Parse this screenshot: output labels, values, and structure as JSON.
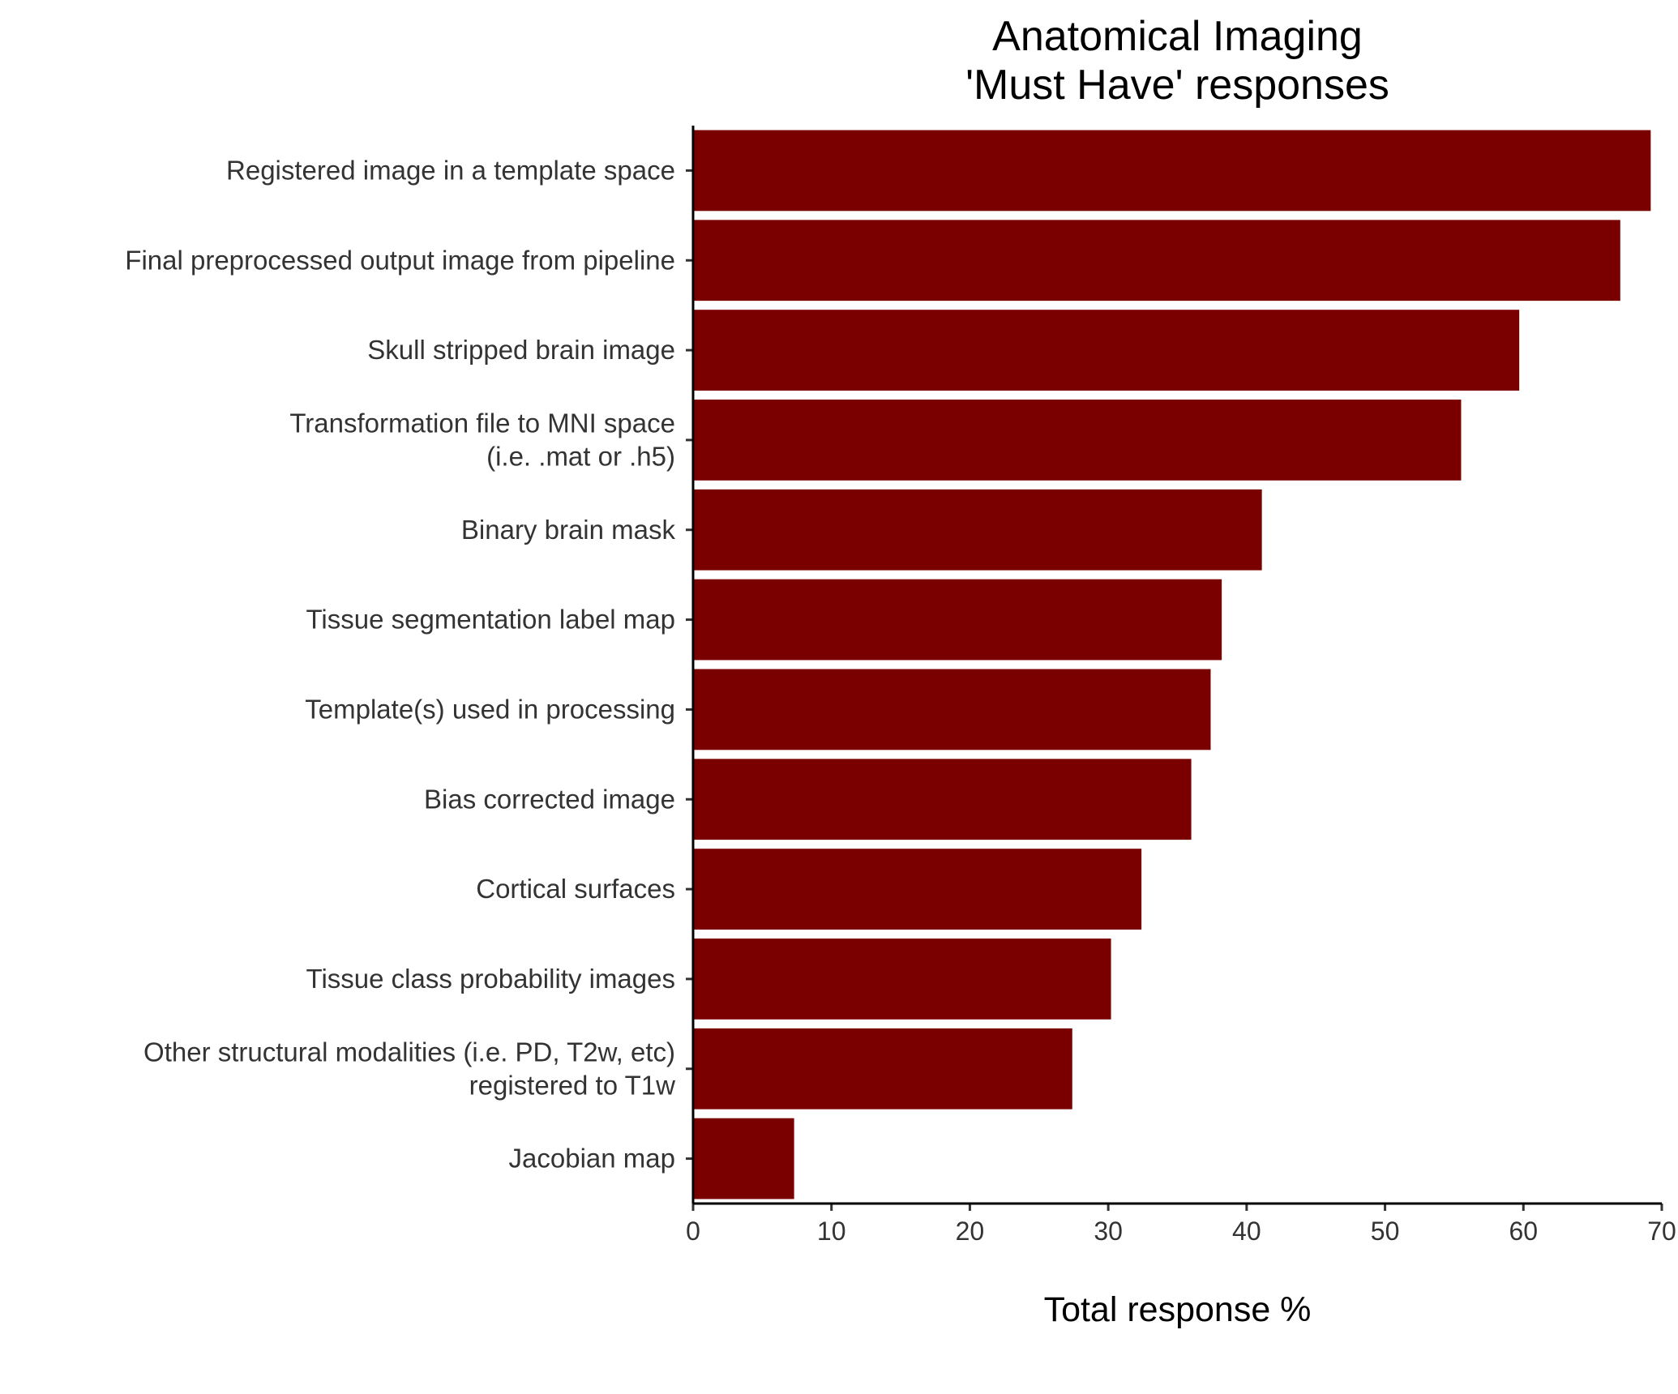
{
  "chart_data": {
    "type": "bar",
    "orientation": "horizontal",
    "title": [
      "Anatomical Imaging",
      "'Must Have' responses"
    ],
    "xlabel": "Total response %",
    "ylabel": "",
    "xlim": [
      0,
      70
    ],
    "xticks": [
      "0",
      "10",
      "20",
      "30",
      "40",
      "50",
      "60",
      "70"
    ],
    "categories": [
      [
        "Registered image in a template space"
      ],
      [
        "Final preprocessed output image from pipeline"
      ],
      [
        "Skull stripped brain image"
      ],
      [
        "Transformation file to MNI space",
        "(i.e. .mat or .h5)"
      ],
      [
        "Binary brain mask"
      ],
      [
        "Tissue segmentation label map"
      ],
      [
        "Template(s) used in processing"
      ],
      [
        "Bias corrected image"
      ],
      [
        "Cortical surfaces"
      ],
      [
        "Tissue class probability images"
      ],
      [
        "Other structural modalities (i.e. PD, T2w, etc)",
        "registered to T1w"
      ],
      [
        "Jacobian map"
      ]
    ],
    "values": [
      69.2,
      67.0,
      59.7,
      55.5,
      41.1,
      38.2,
      37.4,
      36.0,
      32.4,
      30.2,
      27.4,
      7.3
    ],
    "bar_color": "#7a0000",
    "grid": false,
    "legend": "none"
  }
}
